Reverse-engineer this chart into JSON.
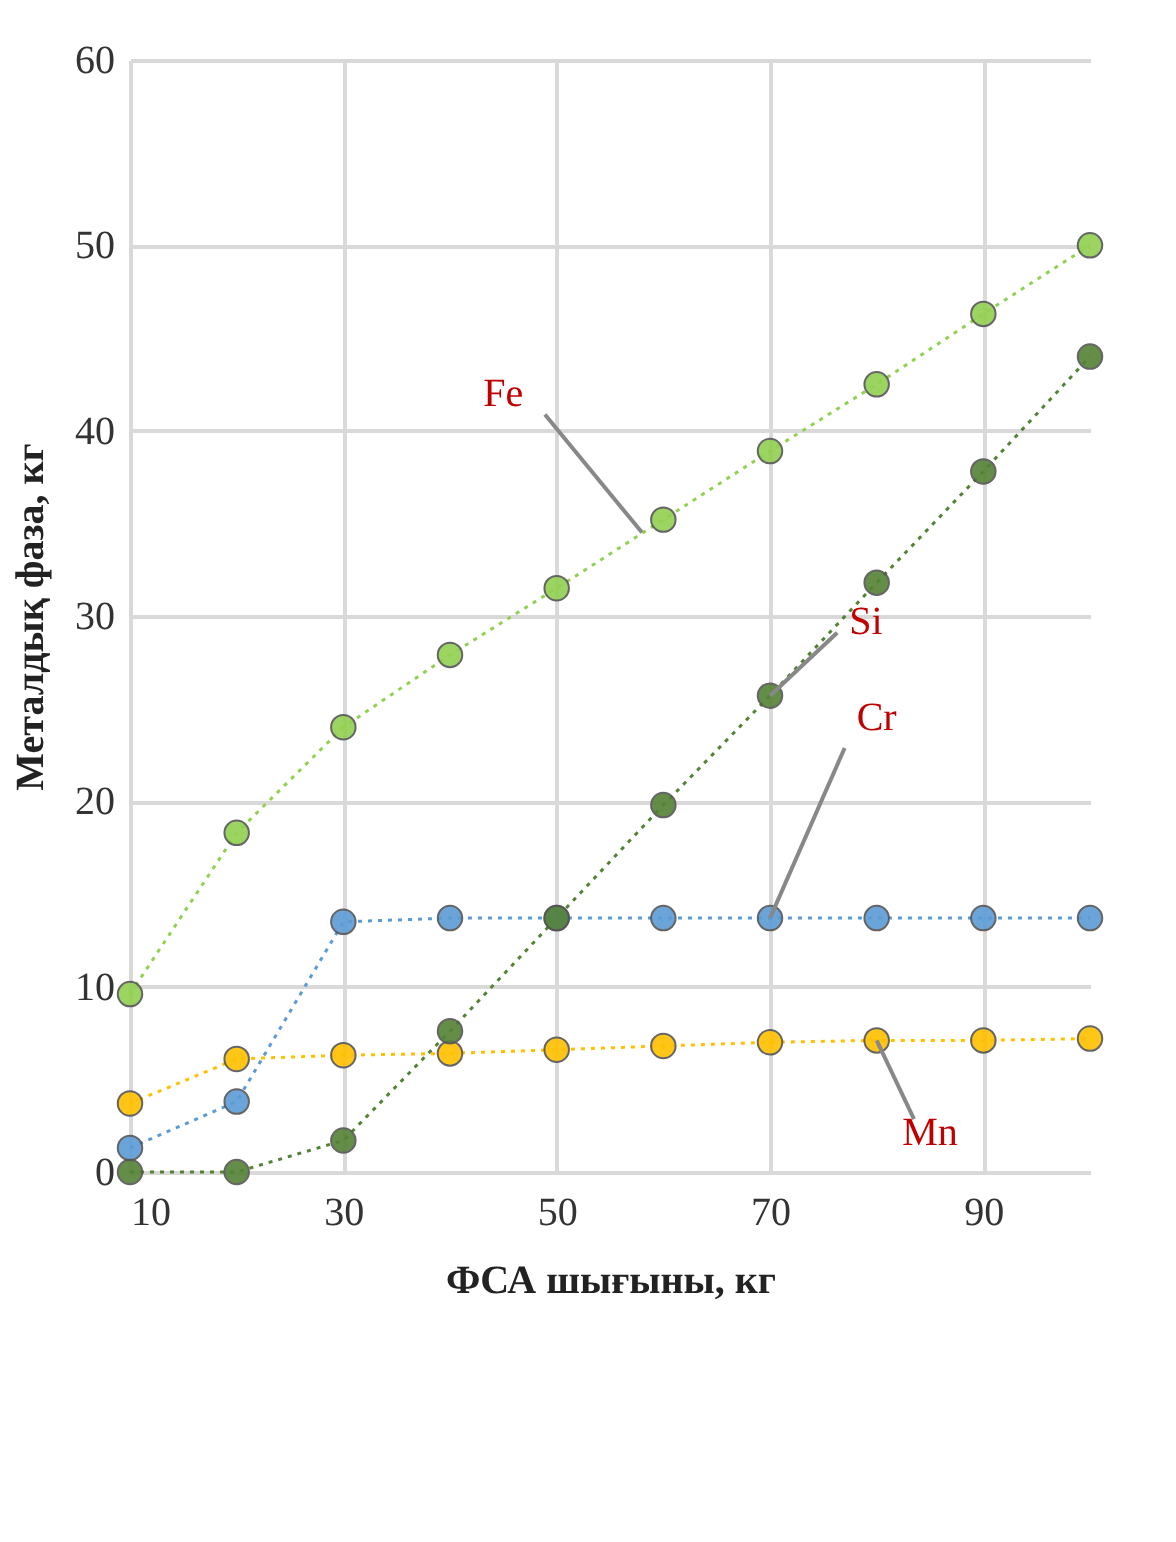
{
  "chart_data": {
    "type": "line",
    "xlabel": "ФСА шығыны, кг",
    "ylabel": "Металдық фаза, кг",
    "x": [
      10,
      20,
      30,
      40,
      50,
      60,
      70,
      80,
      90,
      100
    ],
    "xlim": [
      10,
      100
    ],
    "xticks": [
      10,
      30,
      50,
      70,
      90
    ],
    "ylim": [
      0,
      60
    ],
    "yticks": [
      0,
      10,
      20,
      30,
      40,
      50,
      60
    ],
    "grid": true,
    "legend": false,
    "marker": "circle",
    "line_style": "dotted",
    "series": [
      {
        "color": "#92d050",
        "values": [
          9.6,
          18.3,
          24.0,
          27.9,
          31.5,
          35.2,
          38.9,
          42.5,
          46.3,
          50.0
        ]
      },
      {
        "color": "#548235",
        "values": [
          0,
          0,
          1.7,
          7.6,
          13.7,
          19.8,
          25.7,
          31.8,
          37.8,
          44.0
        ]
      },
      {
        "color": "#5b9bd5",
        "values": [
          1.3,
          3.8,
          13.5,
          13.7,
          13.7,
          13.7,
          13.7,
          13.7,
          13.7,
          13.7
        ]
      },
      {
        "color": "#ffc000",
        "values": [
          3.7,
          6.1,
          6.3,
          6.4,
          6.6,
          6.8,
          7.0,
          7.1,
          7.1,
          7.2
        ]
      }
    ],
    "annotations": [
      {
        "text": "Fe",
        "x": 58,
        "y": 34.5
      },
      {
        "text": "Si",
        "x": 70,
        "y": 25.7
      },
      {
        "text": "Cr",
        "x": 70,
        "y": 13.7
      },
      {
        "text": "Mn",
        "x": 80,
        "y": 7.1
      }
    ]
  }
}
